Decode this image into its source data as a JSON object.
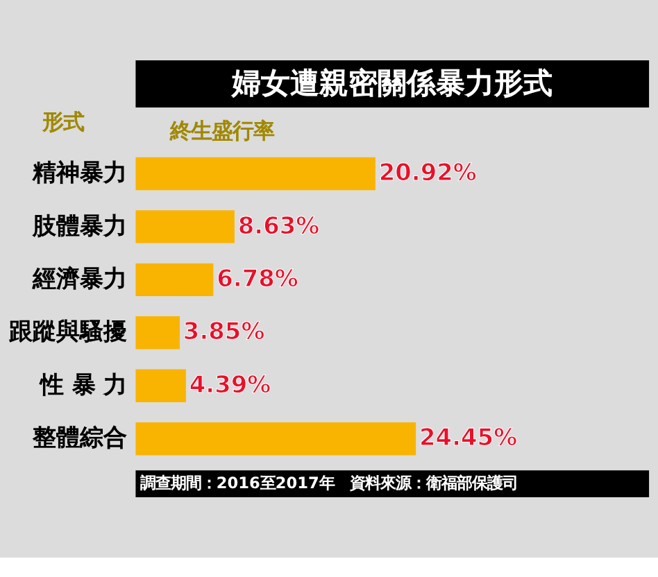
{
  "chart_data": {
    "type": "bar",
    "orientation": "horizontal",
    "title": "婦女遭親密關係暴力形式",
    "ylabel": "形式",
    "xlabel": "終生盛行率",
    "categories": [
      "精神暴力",
      "肢體暴力",
      "經濟暴力",
      "跟蹤與騷擾",
      "性 暴 力",
      "整體綜合"
    ],
    "values": [
      20.92,
      8.63,
      6.78,
      3.85,
      4.39,
      24.45
    ],
    "value_labels": [
      "20.92%",
      "8.63%",
      "6.78%",
      "3.85%",
      "4.39%",
      "24.45%"
    ],
    "color": "#f8b400",
    "tick_labels": "y",
    "annotations": [
      "調查期間：2016至2017年　資料來源：衛福部保護司"
    ]
  }
}
